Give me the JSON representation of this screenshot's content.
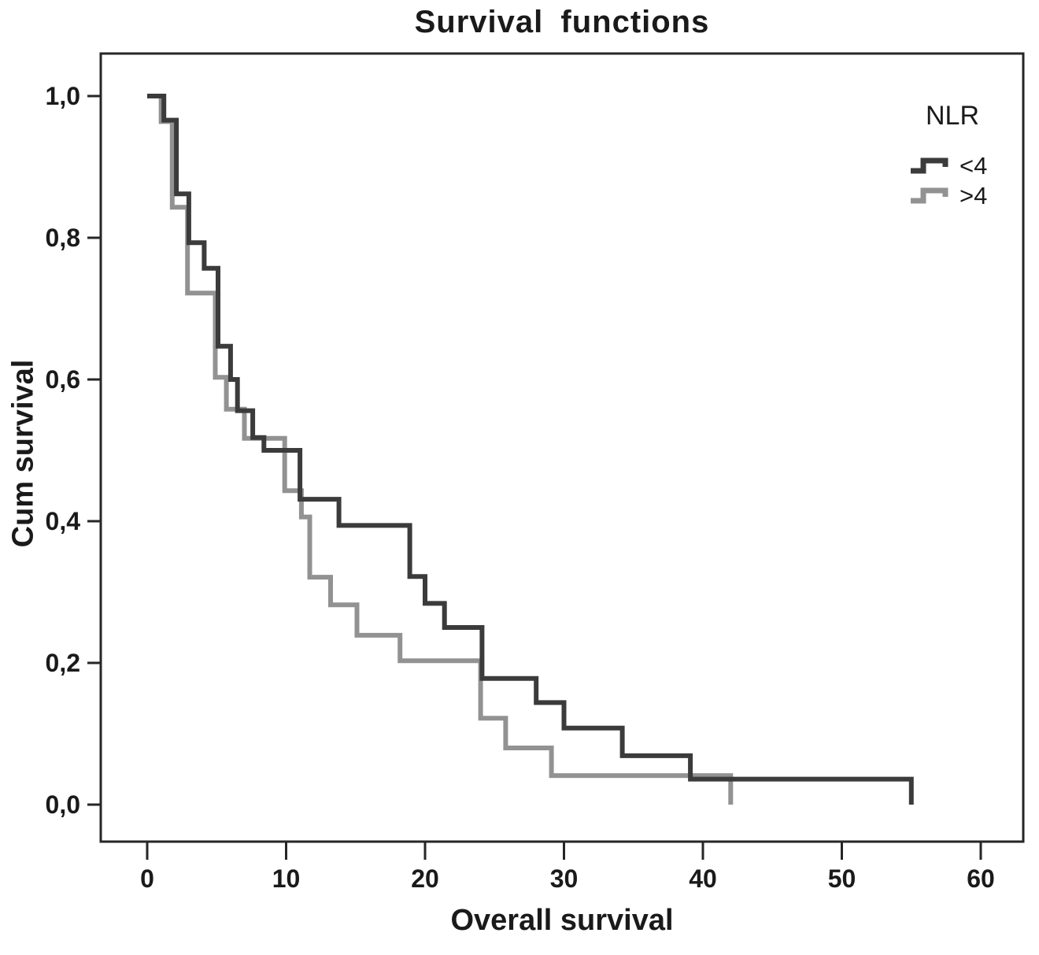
{
  "chart_data": {
    "type": "line",
    "subtype": "kaplan-meier-step",
    "title": "Survival functions",
    "xlabel": "Overall survival",
    "ylabel": "Cum survival",
    "x_axis": {
      "min": 0,
      "max": 60,
      "tick_values": [
        0,
        10,
        20,
        30,
        40,
        50,
        60
      ],
      "tick_labels": [
        "0",
        "10",
        "20",
        "30",
        "40",
        "50",
        "60"
      ]
    },
    "y_axis": {
      "min": 0.0,
      "max": 1.0,
      "tick_values": [
        0.0,
        0.2,
        0.4,
        0.6,
        0.8,
        1.0
      ],
      "tick_labels": [
        "0,0",
        "0,2",
        "0,4",
        "0,6",
        "0,8",
        "1,0"
      ]
    },
    "grid": false,
    "legend": {
      "title": "NLR",
      "position": "top-right",
      "entries": [
        {
          "label": "<4",
          "color": "#3b3b3b"
        },
        {
          "label": ">4",
          "color": "#929292"
        }
      ]
    },
    "series": [
      {
        "name": "<4",
        "color": "#3b3b3b",
        "points": [
          [
            0,
            1.0
          ],
          [
            1.2,
            0.966
          ],
          [
            2.1,
            0.862
          ],
          [
            3.0,
            0.793
          ],
          [
            4.1,
            0.757
          ],
          [
            5.1,
            0.647
          ],
          [
            6.0,
            0.6
          ],
          [
            6.5,
            0.556
          ],
          [
            7.6,
            0.518
          ],
          [
            8.4,
            0.5
          ],
          [
            11.0,
            0.431
          ],
          [
            13.8,
            0.394
          ],
          [
            18.9,
            0.322
          ],
          [
            20.0,
            0.284
          ],
          [
            21.4,
            0.25
          ],
          [
            24.1,
            0.178
          ],
          [
            28.0,
            0.144
          ],
          [
            30.0,
            0.108
          ],
          [
            34.2,
            0.069
          ],
          [
            39.1,
            0.036
          ],
          [
            55.0,
            0.0
          ]
        ]
      },
      {
        "name": ">4",
        "color": "#929292",
        "points": [
          [
            0,
            1.0
          ],
          [
            1.0,
            0.964
          ],
          [
            1.8,
            0.843
          ],
          [
            2.9,
            0.722
          ],
          [
            4.9,
            0.603
          ],
          [
            5.7,
            0.558
          ],
          [
            7.0,
            0.517
          ],
          [
            9.9,
            0.443
          ],
          [
            11.1,
            0.406
          ],
          [
            11.7,
            0.321
          ],
          [
            13.2,
            0.282
          ],
          [
            15.1,
            0.239
          ],
          [
            18.2,
            0.203
          ],
          [
            24.0,
            0.122
          ],
          [
            25.8,
            0.08
          ],
          [
            29.1,
            0.041
          ],
          [
            42.0,
            0.0
          ]
        ]
      }
    ]
  },
  "style": {
    "frame_color": "#262626",
    "text_color": "#1a1a1a",
    "background": "#ffffff"
  }
}
